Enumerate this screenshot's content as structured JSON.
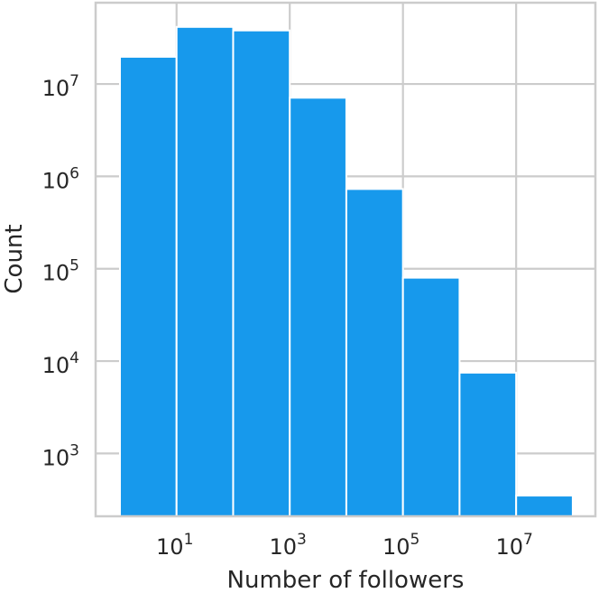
{
  "chart_data": {
    "type": "bar",
    "subtype": "histogram",
    "title": "",
    "xlabel": "Number of followers",
    "ylabel": "Count",
    "xscale": "log",
    "yscale": "log",
    "bin_edges": [
      1,
      10,
      100,
      1000,
      10000,
      100000,
      1000000,
      10000000,
      100000000
    ],
    "categories": [
      "10^0-10^1",
      "10^1-10^2",
      "10^2-10^3",
      "10^3-10^4",
      "10^4-10^5",
      "10^5-10^6",
      "10^6-10^7",
      "10^7-10^8"
    ],
    "values": [
      19700000,
      41500000,
      38000000,
      7100000,
      730000,
      80000,
      7500,
      350
    ],
    "xlim_log10": [
      -0.43,
      8.4
    ],
    "ylim_log10": [
      2.32,
      7.88
    ],
    "x_ticks": [
      {
        "base": "10",
        "exp": "1",
        "log10": 1
      },
      {
        "base": "10",
        "exp": "3",
        "log10": 3
      },
      {
        "base": "10",
        "exp": "5",
        "log10": 5
      },
      {
        "base": "10",
        "exp": "7",
        "log10": 7
      }
    ],
    "y_ticks": [
      {
        "base": "10",
        "exp": "3",
        "log10": 3
      },
      {
        "base": "10",
        "exp": "4",
        "log10": 4
      },
      {
        "base": "10",
        "exp": "5",
        "log10": 5
      },
      {
        "base": "10",
        "exp": "6",
        "log10": 6
      },
      {
        "base": "10",
        "exp": "7",
        "log10": 7
      }
    ],
    "grid": true,
    "legend": null,
    "colors": {
      "bar": "#1799EC",
      "bar_edge": "#ffffff",
      "grid": "#cccccc",
      "spine": "#cccccc",
      "text": "#262626"
    }
  }
}
